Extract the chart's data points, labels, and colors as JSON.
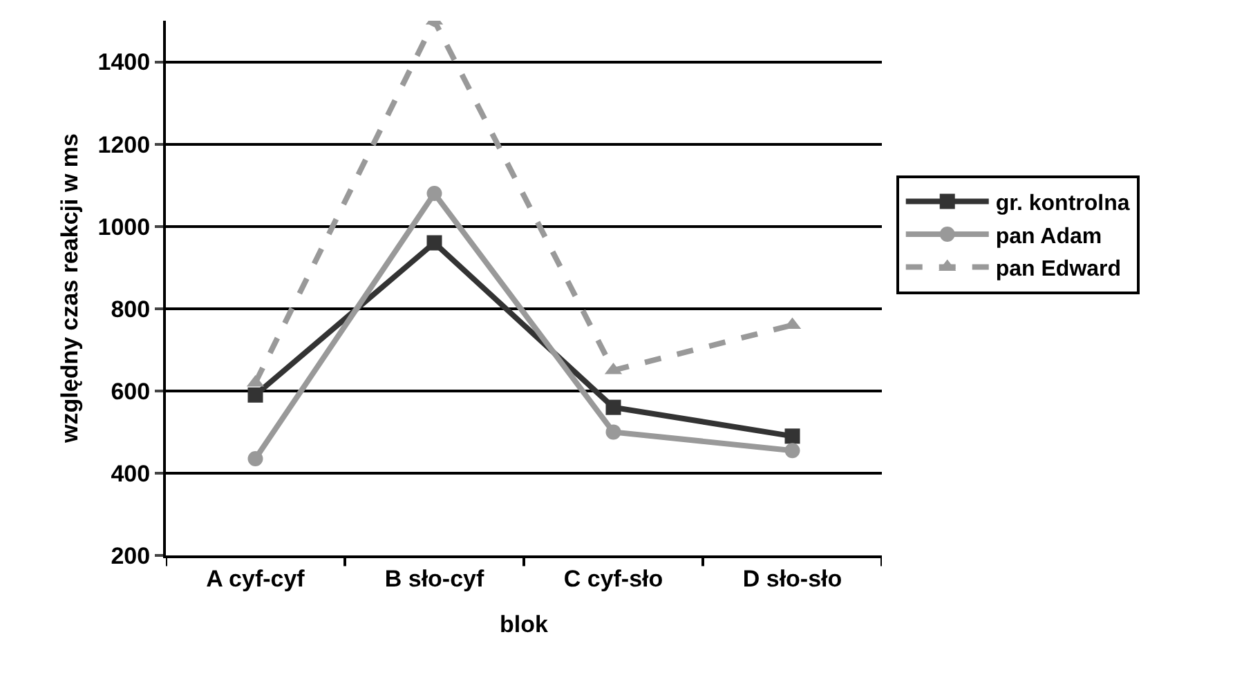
{
  "chart_data": {
    "type": "line",
    "xlabel": "blok",
    "ylabel": "względny czas reakcji w ms",
    "categories": [
      "A cyf-cyf",
      "B sło-cyf",
      "C cyf-sło",
      "D sło-sło"
    ],
    "series": [
      {
        "name": "gr. kontrolna",
        "color": "#333333",
        "marker": "square",
        "line_style": "solid",
        "values": [
          590,
          960,
          560,
          490
        ]
      },
      {
        "name": "pan Adam",
        "color": "#999999",
        "marker": "circle",
        "line_style": "solid",
        "values": [
          435,
          1080,
          500,
          455
        ]
      },
      {
        "name": "pan Edward",
        "color": "#999999",
        "marker": "triangle",
        "line_style": "dashed",
        "values": [
          620,
          1500,
          650,
          760
        ]
      }
    ],
    "ylim": [
      200,
      1500
    ],
    "yticks": [
      200,
      400,
      600,
      800,
      1000,
      1200,
      1400
    ],
    "grid": "y",
    "legend": "right"
  }
}
